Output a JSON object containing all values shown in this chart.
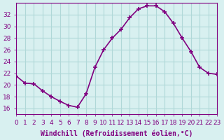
{
  "x": [
    0,
    1,
    2,
    3,
    4,
    5,
    6,
    7,
    8,
    9,
    10,
    11,
    12,
    13,
    14,
    15,
    16,
    17,
    18,
    19,
    20,
    21,
    22,
    23
  ],
  "y": [
    21.5,
    20.3,
    20.2,
    19.0,
    18.0,
    17.2,
    16.5,
    16.2,
    18.5,
    23.0,
    26.0,
    28.0,
    29.5,
    31.5,
    33.0,
    33.5,
    33.5,
    32.5,
    30.5,
    28.0,
    25.7,
    23.0,
    22.0,
    21.8
  ],
  "color": "#800080",
  "bg_color": "#d8f0f0",
  "grid_color": "#b0d8d8",
  "xlabel": "Windchill (Refroidissement éolien,°C)",
  "ylim": [
    15,
    34
  ],
  "xlim": [
    0,
    23
  ],
  "yticks": [
    16,
    18,
    20,
    22,
    24,
    26,
    28,
    30,
    32
  ],
  "xticks": [
    0,
    1,
    2,
    3,
    4,
    5,
    6,
    7,
    8,
    9,
    10,
    11,
    12,
    13,
    14,
    15,
    16,
    17,
    18,
    19,
    20,
    21,
    22,
    23
  ],
  "marker": "+",
  "linewidth": 1.2,
  "markersize": 5,
  "markeredgewidth": 1.2,
  "xlabel_fontsize": 7,
  "tick_fontsize": 6.5,
  "tick_color": "#800080",
  "label_color": "#800080"
}
